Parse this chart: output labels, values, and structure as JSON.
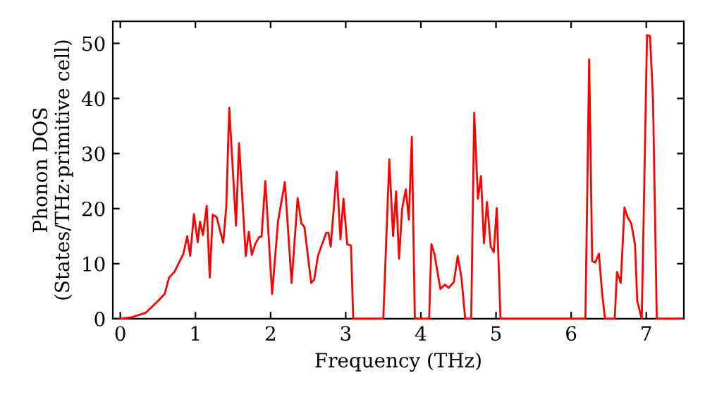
{
  "chart_data": {
    "type": "line",
    "xlabel": "Frequency (THz)",
    "ylabel": "Phonon DOS\n(States/THz·primitive cell)",
    "xlim": [
      -0.1,
      7.5
    ],
    "ylim": [
      0,
      54
    ],
    "xticks": [
      0,
      1,
      2,
      3,
      4,
      5,
      6,
      7
    ],
    "yticks": [
      0,
      10,
      20,
      30,
      40,
      50
    ],
    "grid": false,
    "legend": false,
    "marker": "none",
    "line_style": "solid",
    "series": [
      {
        "color": "#ff0000",
        "x": [
          0,
          0.16,
          0.34,
          0.5,
          0.59,
          0.65,
          0.72,
          0.84,
          0.89,
          0.93,
          0.98,
          1.03,
          1.06,
          1.1,
          1.15,
          1.19,
          1.23,
          1.28,
          1.37,
          1.41,
          1.45,
          1.54,
          1.58,
          1.67,
          1.71,
          1.75,
          1.8,
          1.85,
          1.88,
          1.93,
          2.02,
          2.1,
          2.19,
          2.28,
          2.36,
          2.41,
          2.45,
          2.54,
          2.58,
          2.63,
          2.74,
          2.77,
          2.8,
          2.88,
          2.93,
          2.97,
          3.02,
          3.07,
          3.1,
          3.5,
          3.58,
          3.63,
          3.67,
          3.71,
          3.75,
          3.8,
          3.84,
          3.88,
          3.92,
          4.11,
          4.14,
          4.18,
          4.26,
          4.32,
          4.37,
          4.44,
          4.49,
          4.54,
          4.59,
          4.67,
          4.71,
          4.76,
          4.8,
          4.84,
          4.88,
          4.93,
          4.97,
          5.01,
          5.06,
          6.19,
          6.24,
          6.28,
          6.32,
          6.37,
          6.41,
          6.45,
          6.58,
          6.61,
          6.66,
          6.71,
          6.75,
          6.8,
          6.85,
          6.88,
          6.94,
          7.01,
          7.05,
          7.09,
          7.14,
          7.47
        ],
        "values": [
          0,
          0.3,
          1.1,
          3.2,
          4.5,
          7.5,
          8.5,
          11.8,
          15,
          11.4,
          19,
          13.9,
          17.6,
          15.2,
          20.5,
          7.5,
          18.9,
          18.5,
          13.8,
          20.3,
          38.3,
          16.9,
          31.9,
          11.4,
          15.8,
          11.6,
          13.7,
          14.9,
          14.9,
          25,
          4.5,
          17.8,
          24.8,
          6.5,
          21.9,
          17.3,
          16.7,
          6.5,
          7.1,
          11.4,
          15.6,
          15.6,
          13.1,
          26.7,
          14.4,
          21.8,
          13.5,
          13.3,
          0,
          0,
          28.9,
          15,
          23.1,
          10.9,
          19.9,
          23.5,
          18,
          33,
          0,
          0,
          13.5,
          11.8,
          5.4,
          6.2,
          5.6,
          6.7,
          11.4,
          7.5,
          0,
          0,
          37.4,
          21.8,
          25.9,
          13.7,
          21.2,
          13.1,
          12.1,
          20.1,
          0,
          0,
          47.1,
          10.5,
          10.2,
          11.8,
          5,
          0,
          0,
          8.5,
          6.5,
          20.2,
          18.5,
          17.3,
          13.5,
          3.2,
          0,
          51.5,
          51.3,
          39.6,
          0,
          0
        ]
      }
    ]
  }
}
